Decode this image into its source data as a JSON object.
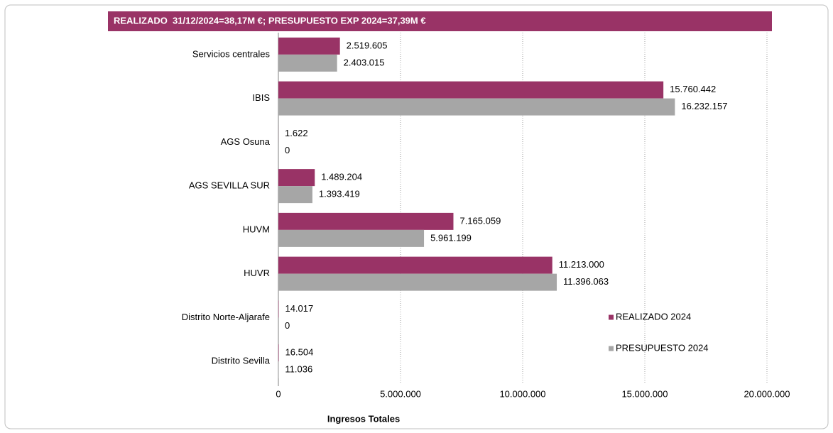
{
  "chart_data": {
    "type": "bar",
    "orientation": "horizontal",
    "title": "REALIZADO  31/12/2024=38,17M €; PRESUPUESTO EXP 2024=37,39M €",
    "x_label": "Ingresos Totales",
    "categories": [
      "Servicios centrales",
      "IBIS",
      "AGS Osuna",
      "AGS SEVILLA SUR",
      "HUVM",
      "HUVR",
      "Distrito Norte-Aljarafe",
      "Distrito Sevilla"
    ],
    "series": [
      {
        "name": "REALIZADO 2024",
        "color": "#993366",
        "values": [
          2519605,
          15760442,
          1622,
          1489204,
          7165059,
          11213000,
          14017,
          16504
        ],
        "value_labels": [
          "2.519.605",
          "15.760.442",
          "1.622",
          "1.489.204",
          "7.165.059",
          "11.213.000",
          "14.017",
          "16.504"
        ]
      },
      {
        "name": "PRESUPUESTO 2024",
        "color": "#a6a6a6",
        "values": [
          2403015,
          16232157,
          0,
          1393419,
          5961199,
          11396063,
          0,
          11036
        ],
        "value_labels": [
          "2.403.015",
          "16.232.157",
          "0",
          "1.393.419",
          "5.961.199",
          "11.396.063",
          "0",
          "11.036"
        ]
      }
    ],
    "xlim": [
      0,
      20000000
    ],
    "xticks": [
      0,
      {
        "value": 5000000,
        "label": "5.000.000"
      },
      {
        "value": 10000000,
        "label": "10.000.000"
      },
      {
        "value": 15000000,
        "label": "15.000.000"
      },
      {
        "value": 20000000,
        "label": "20.000.000"
      }
    ],
    "grid": true,
    "legend": "right"
  }
}
